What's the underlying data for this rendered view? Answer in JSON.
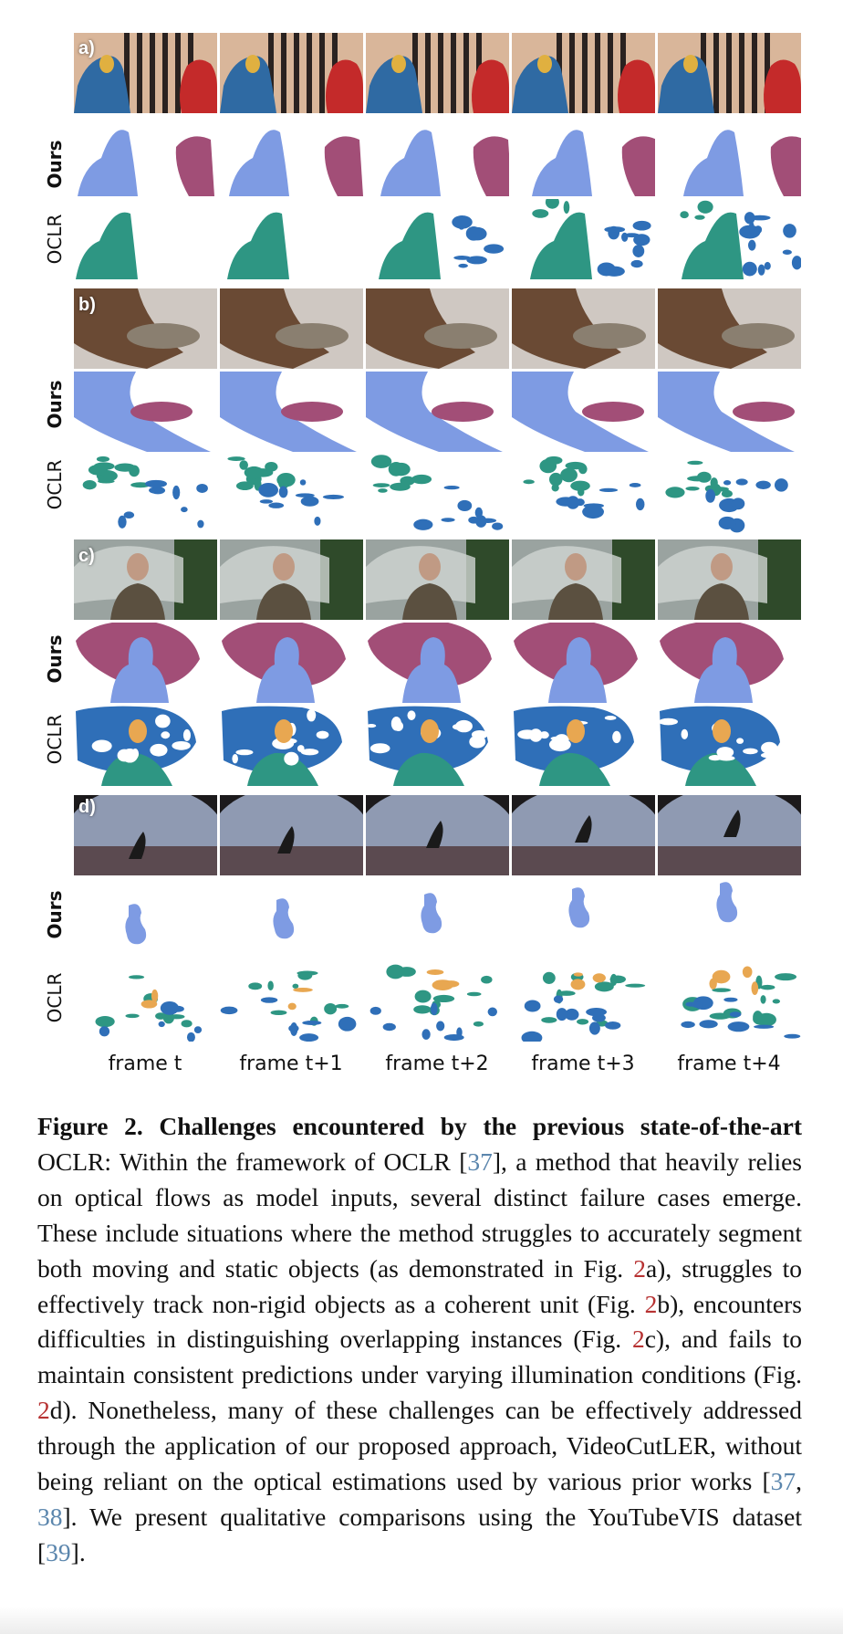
{
  "panels": [
    {
      "letter": "a)",
      "rows": [
        "Ours",
        "OCLR"
      ]
    },
    {
      "letter": "b)",
      "rows": [
        "Ours",
        "OCLR"
      ]
    },
    {
      "letter": "c)",
      "rows": [
        "Ours",
        "OCLR"
      ]
    },
    {
      "letter": "d)",
      "rows": [
        "Ours",
        "OCLR"
      ]
    }
  ],
  "frame_labels": [
    "frame t",
    "frame t+1",
    "frame t+2",
    "frame t+3",
    "frame t+4"
  ],
  "colors": {
    "ours_primary": "#7e9be3",
    "ours_secondary": "#a24e77",
    "oclr_teal": "#2e9683",
    "oclr_blue": "#2f6fb8",
    "oclr_orange": "#e8a751",
    "ref_blue": "#5b86ad",
    "ref_red": "#b73232"
  },
  "caption": {
    "lead": "Figure 2.  Challenges encountered by the previous state-of-the-art",
    "t1": " OCLR: Within the framework of OCLR [",
    "r37a": "37",
    "t2": "], a method that heavily relies on optical flows as model inputs, several distinct failure cases emerge.  These include situations where the method struggles to accurately segment both moving and static objects (as demonstrated in Fig. ",
    "f2a": "2",
    "t3": "a), struggles to effectively track non-rigid objects as a coherent unit (Fig. ",
    "f2b": "2",
    "t4": "b), encounters difficulties in distinguishing overlapping instances (Fig. ",
    "f2c": "2",
    "t5": "c), and fails to maintain consistent predictions under varying illumination conditions (Fig. ",
    "f2d": "2",
    "t6": "d).  Nonetheless, many of these challenges can be effectively addressed through the application of our proposed approach, VideoCutLER, without being reliant on the optical estimations used by various prior works [",
    "r37b": "37",
    "sep": ", ",
    "r38": "38",
    "t7": "]. We present qualitative comparisons using the YouTubeVIS dataset [",
    "r39": "39",
    "t8": "]."
  }
}
